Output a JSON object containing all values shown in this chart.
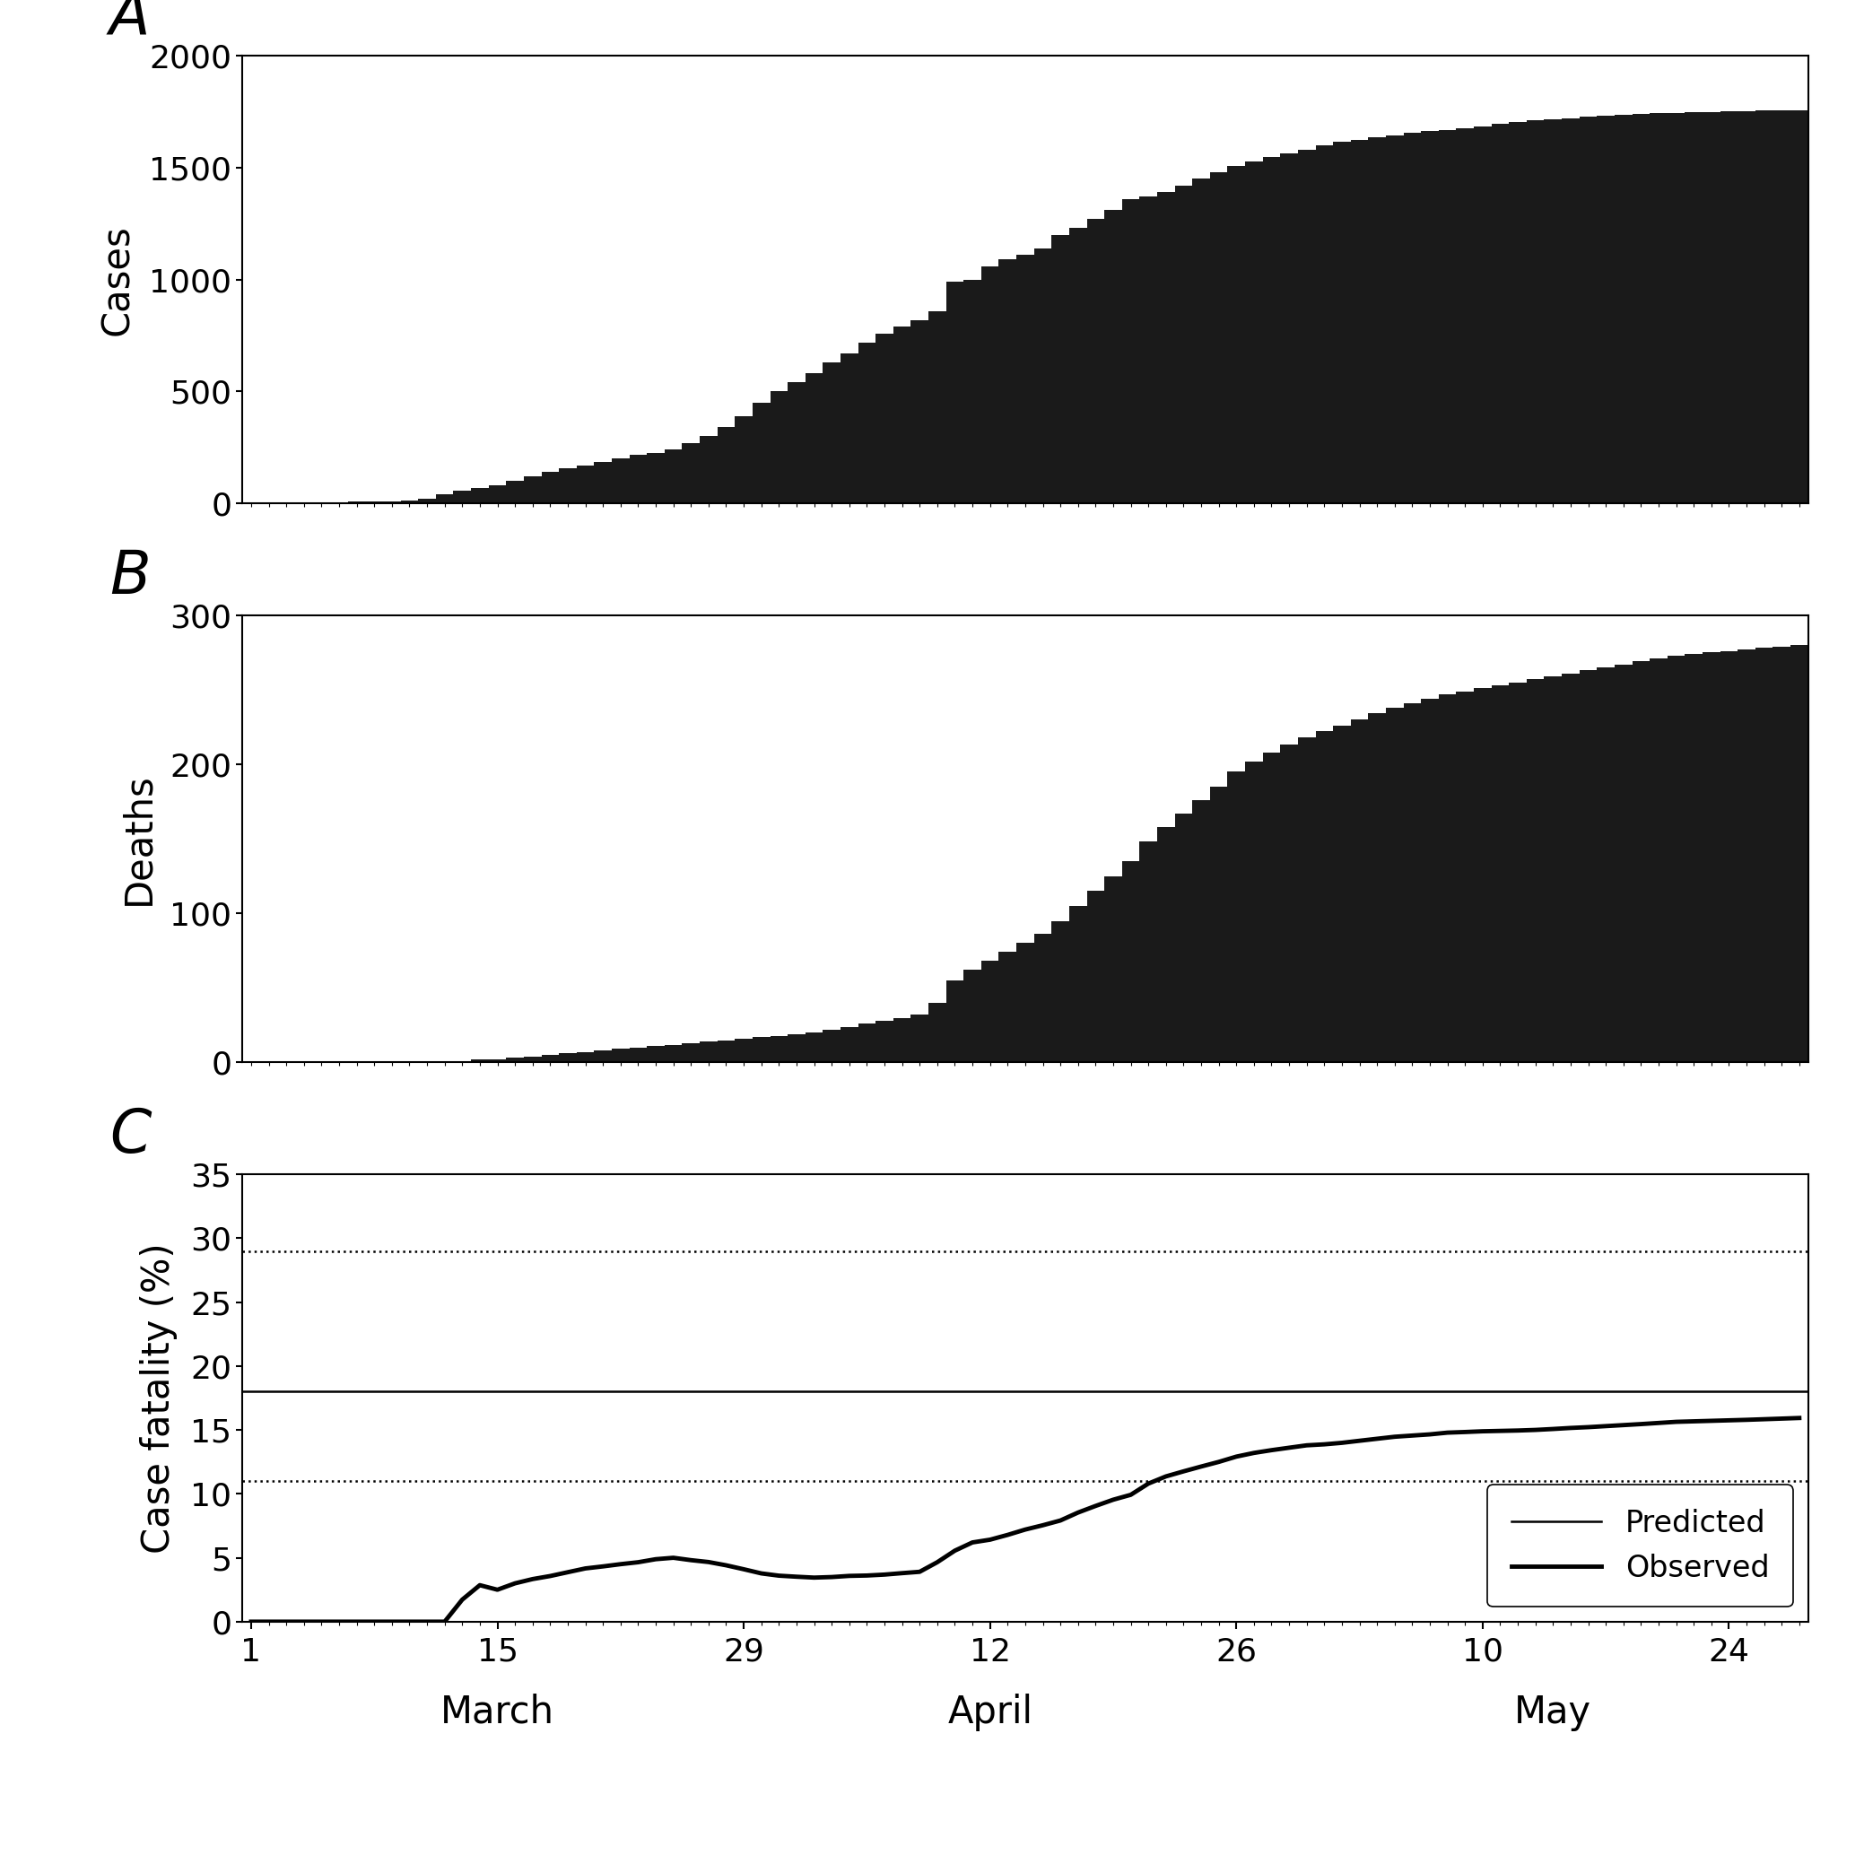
{
  "ylabel_A": "Cases",
  "ylabel_B": "Deaths",
  "ylabel_C": "Case fatality (%)",
  "ylim_A": [
    0,
    2000
  ],
  "ylim_B": [
    0,
    300
  ],
  "ylim_C": [
    0,
    35
  ],
  "yticks_A": [
    0,
    500,
    1000,
    1500,
    2000
  ],
  "yticks_B": [
    0,
    100,
    200,
    300
  ],
  "yticks_C": [
    0,
    5,
    10,
    15,
    20,
    25,
    30,
    35
  ],
  "predicted_line": 18.0,
  "lower_ci": 11.0,
  "upper_ci": 29.0,
  "bar_color": "#1a1a1a",
  "background_color": "#ffffff",
  "legend_predicted": "Predicted",
  "legend_observed": "Observed",
  "tick_positions": [
    0,
    14,
    28,
    42,
    56,
    70,
    84
  ],
  "tick_labels": [
    "1",
    "15",
    "29",
    "12",
    "26",
    "10",
    "24"
  ],
  "n_days": 89,
  "cases": [
    2,
    3,
    4,
    4,
    5,
    6,
    7,
    8,
    10,
    12,
    20,
    40,
    58,
    70,
    80,
    100,
    120,
    140,
    155,
    168,
    185,
    200,
    215,
    225,
    240,
    270,
    300,
    340,
    390,
    450,
    500,
    540,
    580,
    630,
    670,
    720,
    760,
    790,
    820,
    860,
    990,
    1000,
    1060,
    1090,
    1110,
    1140,
    1200,
    1230,
    1270,
    1310,
    1360,
    1370,
    1390,
    1420,
    1450,
    1480,
    1510,
    1530,
    1550,
    1565,
    1580,
    1600,
    1615,
    1625,
    1635,
    1645,
    1655,
    1665,
    1670,
    1678,
    1685,
    1695,
    1705,
    1713,
    1718,
    1722,
    1728,
    1732,
    1736,
    1740,
    1743,
    1746,
    1748,
    1750,
    1752,
    1754,
    1755,
    1756,
    1757
  ],
  "deaths": [
    0,
    0,
    0,
    0,
    0,
    0,
    0,
    0,
    0,
    0,
    0,
    0,
    1,
    2,
    2,
    3,
    4,
    5,
    6,
    7,
    8,
    9,
    10,
    11,
    12,
    13,
    14,
    15,
    16,
    17,
    18,
    19,
    20,
    22,
    24,
    26,
    28,
    30,
    32,
    40,
    55,
    62,
    68,
    74,
    80,
    86,
    95,
    105,
    115,
    125,
    135,
    148,
    158,
    167,
    176,
    185,
    195,
    202,
    208,
    213,
    218,
    222,
    226,
    230,
    234,
    238,
    241,
    244,
    247,
    249,
    251,
    253,
    255,
    257,
    259,
    261,
    263,
    265,
    267,
    269,
    271,
    273,
    274,
    275,
    276,
    277,
    278,
    279,
    280
  ]
}
